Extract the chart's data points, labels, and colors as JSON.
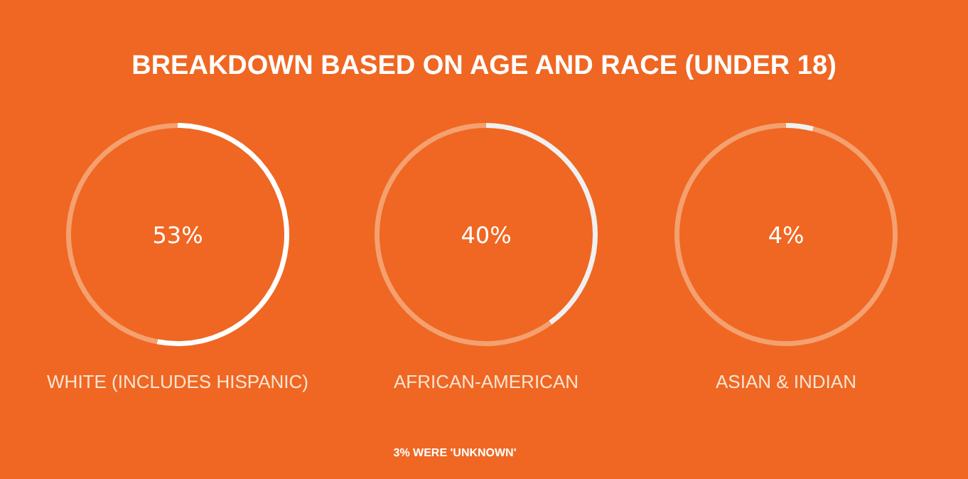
{
  "chart_data": [
    {
      "type": "other",
      "title": "BREAKDOWN BASED ON AGE AND RACE (UNDER 18)",
      "annotations": [
        "3% WERE 'UNKNOWN'"
      ]
    },
    {
      "type": "donut",
      "xlabel": "WHITE (INCLUDES HISPANIC)",
      "categories": [
        null,
        null
      ],
      "values": [
        53,
        47
      ],
      "colors": [
        "#ffffff",
        "#f4a06f"
      ],
      "annotations": [
        "53%"
      ]
    },
    {
      "type": "donut",
      "xlabel": "AFRICAN-AMERICAN",
      "categories": [
        null,
        null
      ],
      "values": [
        40,
        60
      ],
      "colors": [
        "#f0f0f0",
        "#f4a06f"
      ],
      "annotations": [
        "40%"
      ]
    },
    {
      "type": "donut",
      "xlabel": "ASIAN & INDIAN",
      "categories": [
        null,
        null
      ],
      "values": [
        4,
        96
      ],
      "colors": [
        "#f0f0f0",
        "#f4a06f"
      ],
      "annotations": [
        "4%"
      ]
    }
  ]
}
